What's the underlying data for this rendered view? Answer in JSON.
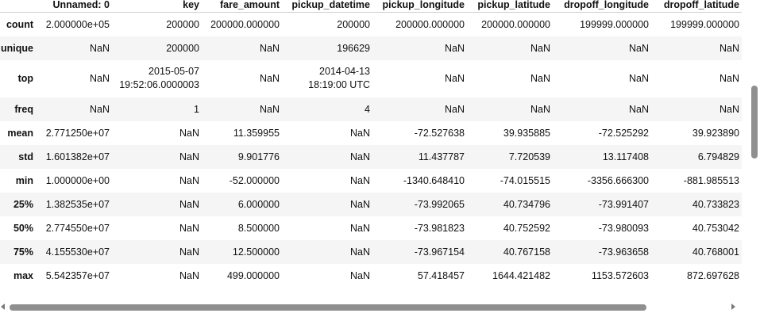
{
  "table": {
    "columns": [
      "Unnamed: 0",
      "key",
      "fare_amount",
      "pickup_datetime",
      "pickup_longitude",
      "pickup_latitude",
      "dropoff_longitude",
      "dropoff_latitude"
    ],
    "rows": [
      {
        "label": "count",
        "cells": [
          "2.000000e+05",
          "200000",
          "200000.000000",
          "200000",
          "200000.000000",
          "200000.000000",
          "199999.000000",
          "199999.000000"
        ]
      },
      {
        "label": "unique",
        "cells": [
          "NaN",
          "200000",
          "NaN",
          "196629",
          "NaN",
          "NaN",
          "NaN",
          "NaN"
        ]
      },
      {
        "label": "top",
        "cells": [
          "NaN",
          "",
          "NaN",
          "",
          "NaN",
          "NaN",
          "NaN",
          "NaN"
        ],
        "key_top": {
          "line1": "2015-05-07",
          "line2": "19:52:06.0000003"
        },
        "datetime_top": {
          "line1": "2014-04-13",
          "line2": "18:19:00 UTC"
        }
      },
      {
        "label": "freq",
        "cells": [
          "NaN",
          "1",
          "NaN",
          "4",
          "NaN",
          "NaN",
          "NaN",
          "NaN"
        ]
      },
      {
        "label": "mean",
        "cells": [
          "2.771250e+07",
          "NaN",
          "11.359955",
          "NaN",
          "-72.527638",
          "39.935885",
          "-72.525292",
          "39.923890"
        ]
      },
      {
        "label": "std",
        "cells": [
          "1.601382e+07",
          "NaN",
          "9.901776",
          "NaN",
          "11.437787",
          "7.720539",
          "13.117408",
          "6.794829"
        ]
      },
      {
        "label": "min",
        "cells": [
          "1.000000e+00",
          "NaN",
          "-52.000000",
          "NaN",
          "-1340.648410",
          "-74.015515",
          "-3356.666300",
          "-881.985513"
        ]
      },
      {
        "label": "25%",
        "cells": [
          "1.382535e+07",
          "NaN",
          "6.000000",
          "NaN",
          "-73.992065",
          "40.734796",
          "-73.991407",
          "40.733823"
        ]
      },
      {
        "label": "50%",
        "cells": [
          "2.774550e+07",
          "NaN",
          "8.500000",
          "NaN",
          "-73.981823",
          "40.752592",
          "-73.980093",
          "40.753042"
        ]
      },
      {
        "label": "75%",
        "cells": [
          "4.155530e+07",
          "NaN",
          "12.500000",
          "NaN",
          "-73.967154",
          "40.767158",
          "-73.963658",
          "40.768001"
        ]
      },
      {
        "label": "max",
        "cells": [
          "5.542357e+07",
          "NaN",
          "499.000000",
          "NaN",
          "57.418457",
          "1644.421482",
          "1153.572603",
          "872.697628"
        ]
      }
    ]
  },
  "scrollbars": {
    "horizontal": {
      "icon_left": "arrow-left-icon",
      "icon_right": "arrow-right-icon"
    },
    "vertical": {}
  }
}
